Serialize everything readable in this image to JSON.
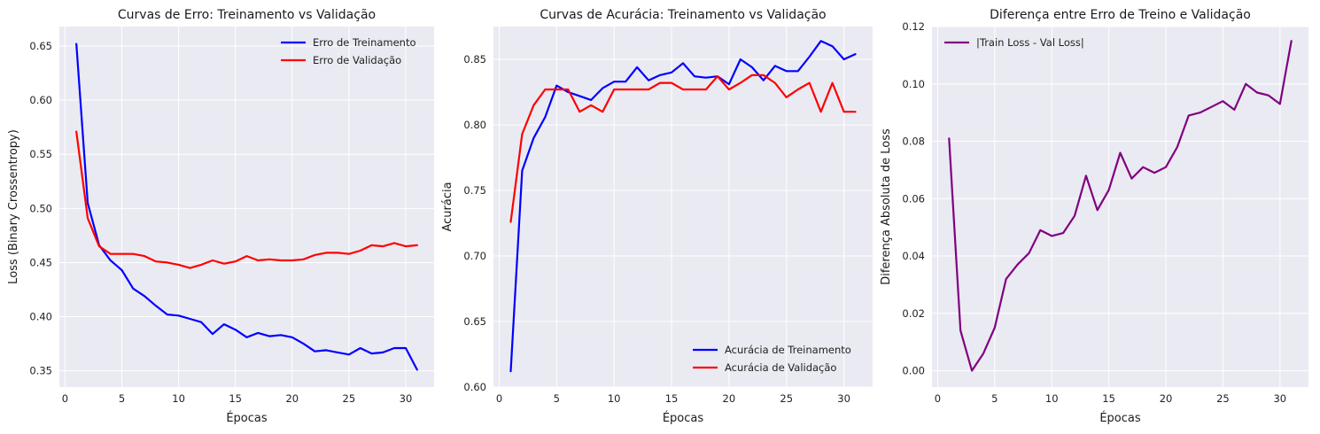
{
  "chart_data": [
    {
      "type": "line",
      "title": "Curvas de Erro: Treinamento vs Validação",
      "xlabel": "Épocas",
      "ylabel": "Loss (Binary Crossentropy)",
      "xlim": [
        -0.5,
        32.5
      ],
      "ylim": [
        0.335,
        0.668
      ],
      "xticks": [
        0,
        5,
        10,
        15,
        20,
        25,
        30
      ],
      "yticks": [
        0.35,
        0.4,
        0.45,
        0.5,
        0.55,
        0.6,
        0.65
      ],
      "ytick_labels": [
        "0.35",
        "0.40",
        "0.45",
        "0.50",
        "0.55",
        "0.60",
        "0.65"
      ],
      "grid": true,
      "legend_position": "upper-right",
      "x": [
        1,
        2,
        3,
        4,
        5,
        6,
        7,
        8,
        9,
        10,
        11,
        12,
        13,
        14,
        15,
        16,
        17,
        18,
        19,
        20,
        21,
        22,
        23,
        24,
        25,
        26,
        27,
        28,
        29,
        30,
        31
      ],
      "series": [
        {
          "name": "Erro de Treinamento",
          "color": "#0000ff",
          "values": [
            0.652,
            0.505,
            0.466,
            0.452,
            0.443,
            0.426,
            0.419,
            0.41,
            0.402,
            0.401,
            0.398,
            0.395,
            0.384,
            0.393,
            0.388,
            0.381,
            0.385,
            0.382,
            0.383,
            0.381,
            0.375,
            0.368,
            0.369,
            0.367,
            0.365,
            0.371,
            0.366,
            0.367,
            0.371,
            0.371,
            0.351
          ]
        },
        {
          "name": "Erro de Validação",
          "color": "#ff0000",
          "values": [
            0.571,
            0.491,
            0.465,
            0.458,
            0.458,
            0.458,
            0.456,
            0.451,
            0.45,
            0.448,
            0.445,
            0.448,
            0.452,
            0.449,
            0.451,
            0.456,
            0.452,
            0.453,
            0.452,
            0.452,
            0.453,
            0.457,
            0.459,
            0.459,
            0.458,
            0.461,
            0.466,
            0.465,
            0.468,
            0.465,
            0.466
          ]
        }
      ]
    },
    {
      "type": "line",
      "title": "Curvas de Acurácia: Treinamento vs Validação",
      "xlabel": "Épocas",
      "ylabel": "Acurácia",
      "xlim": [
        -0.5,
        32.5
      ],
      "ylim": [
        0.6,
        0.875
      ],
      "xticks": [
        0,
        5,
        10,
        15,
        20,
        25,
        30
      ],
      "yticks": [
        0.6,
        0.65,
        0.7,
        0.75,
        0.8,
        0.85
      ],
      "ytick_labels": [
        "0.60",
        "0.65",
        "0.70",
        "0.75",
        "0.80",
        "0.85"
      ],
      "grid": true,
      "legend_position": "lower-right",
      "x": [
        1,
        2,
        3,
        4,
        5,
        6,
        7,
        8,
        9,
        10,
        11,
        12,
        13,
        14,
        15,
        16,
        17,
        18,
        19,
        20,
        21,
        22,
        23,
        24,
        25,
        26,
        27,
        28,
        29,
        30,
        31
      ],
      "series": [
        {
          "name": "Acurácia de Treinamento",
          "color": "#0000ff",
          "values": [
            0.612,
            0.765,
            0.79,
            0.806,
            0.83,
            0.825,
            0.822,
            0.819,
            0.828,
            0.833,
            0.833,
            0.844,
            0.834,
            0.838,
            0.84,
            0.847,
            0.837,
            0.836,
            0.837,
            0.831,
            0.85,
            0.844,
            0.834,
            0.845,
            0.841,
            0.841,
            0.852,
            0.864,
            0.86,
            0.85,
            0.854
          ]
        },
        {
          "name": "Acurácia de Validação",
          "color": "#ff0000",
          "values": [
            0.726,
            0.793,
            0.815,
            0.827,
            0.827,
            0.827,
            0.81,
            0.815,
            0.81,
            0.827,
            0.827,
            0.827,
            0.827,
            0.832,
            0.832,
            0.827,
            0.827,
            0.827,
            0.837,
            0.827,
            0.832,
            0.838,
            0.838,
            0.832,
            0.821,
            0.827,
            0.832,
            0.81,
            0.832,
            0.81,
            0.81
          ]
        }
      ]
    },
    {
      "type": "line",
      "title": "Diferença entre Erro de Treino e Validação",
      "xlabel": "Épocas",
      "ylabel": "Diferença Absoluta de Loss",
      "xlim": [
        -0.5,
        32.5
      ],
      "ylim": [
        -0.0057,
        0.12
      ],
      "xticks": [
        0,
        5,
        10,
        15,
        20,
        25,
        30
      ],
      "yticks": [
        0.0,
        0.02,
        0.04,
        0.06,
        0.08,
        0.1,
        0.12
      ],
      "ytick_labels": [
        "0.00",
        "0.02",
        "0.04",
        "0.06",
        "0.08",
        "0.10",
        "0.12"
      ],
      "grid": true,
      "legend_position": "upper-left",
      "x": [
        1,
        2,
        3,
        4,
        5,
        6,
        7,
        8,
        9,
        10,
        11,
        12,
        13,
        14,
        15,
        16,
        17,
        18,
        19,
        20,
        21,
        22,
        23,
        24,
        25,
        26,
        27,
        28,
        29,
        30,
        31
      ],
      "series": [
        {
          "name": "|Train Loss - Val Loss|",
          "color": "#800080",
          "values": [
            0.081,
            0.014,
            0.0,
            0.006,
            0.015,
            0.032,
            0.037,
            0.041,
            0.049,
            0.047,
            0.048,
            0.054,
            0.068,
            0.056,
            0.063,
            0.076,
            0.067,
            0.071,
            0.069,
            0.071,
            0.078,
            0.089,
            0.09,
            0.092,
            0.094,
            0.091,
            0.1,
            0.097,
            0.096,
            0.093,
            0.115
          ]
        }
      ]
    }
  ]
}
